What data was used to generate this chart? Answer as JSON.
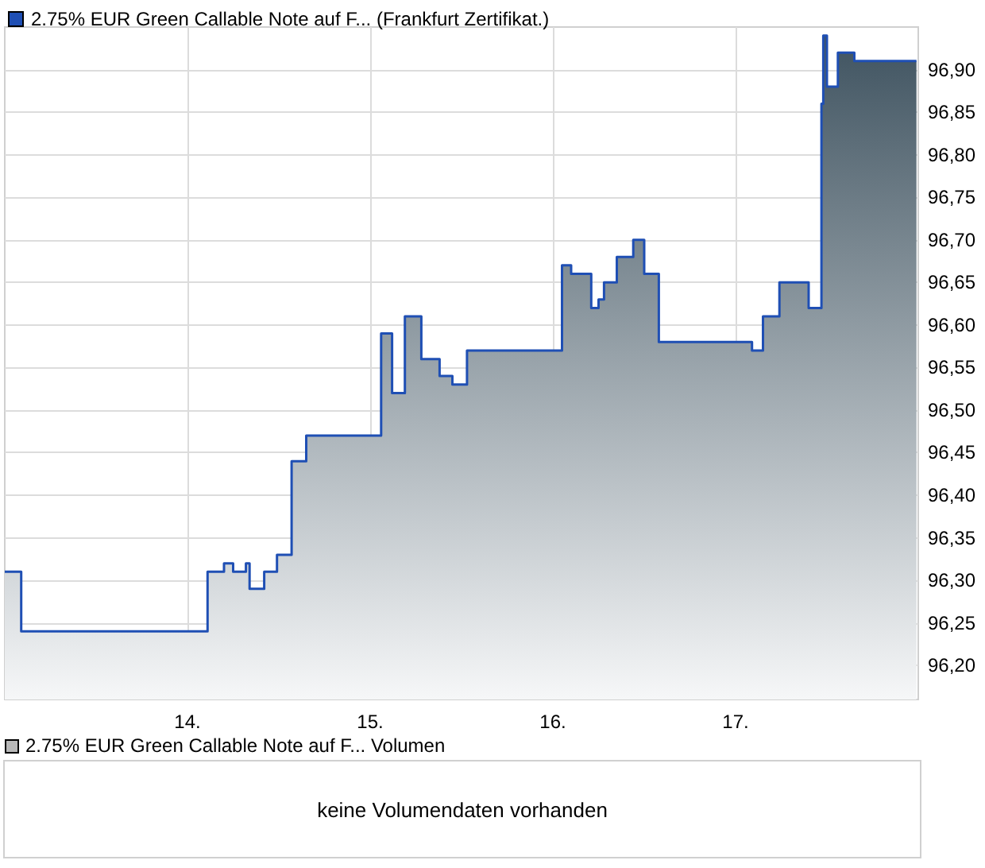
{
  "chart_data": [
    {
      "type": "area",
      "legend": "top left",
      "grid": true,
      "marker": "none",
      "xlim": [
        13,
        18
      ],
      "ylim": [
        96.16,
        96.95
      ],
      "xticks": [
        {
          "value": 14,
          "label": "14."
        },
        {
          "value": 15,
          "label": "15."
        },
        {
          "value": 16,
          "label": "16."
        },
        {
          "value": 17,
          "label": "17."
        }
      ],
      "yticks": [
        {
          "value": 96.2,
          "label": "96,20"
        },
        {
          "value": 96.25,
          "label": "96,25"
        },
        {
          "value": 96.3,
          "label": "96,30"
        },
        {
          "value": 96.35,
          "label": "96,35"
        },
        {
          "value": 96.4,
          "label": "96,40"
        },
        {
          "value": 96.45,
          "label": "96,45"
        },
        {
          "value": 96.5,
          "label": "96,50"
        },
        {
          "value": 96.55,
          "label": "96,55"
        },
        {
          "value": 96.6,
          "label": "96,60"
        },
        {
          "value": 96.65,
          "label": "96,65"
        },
        {
          "value": 96.7,
          "label": "96,70"
        },
        {
          "value": 96.75,
          "label": "96,75"
        },
        {
          "value": 96.8,
          "label": "96,80"
        },
        {
          "value": 96.85,
          "label": "96,85"
        },
        {
          "value": 96.9,
          "label": "96,90"
        }
      ],
      "series": [
        {
          "name": "2.75% EUR Green Callable Note auf F... (Frankfurt Zertifikat.)",
          "color": "#1f4fb4",
          "x": [
            13,
            13.09,
            13.09,
            14.11,
            14.11,
            14.2,
            14.2,
            14.25,
            14.25,
            14.32,
            14.32,
            14.34,
            14.34,
            14.42,
            14.42,
            14.49,
            14.49,
            14.57,
            14.57,
            14.65,
            14.65,
            15.06,
            15.06,
            15.12,
            15.12,
            15.19,
            15.19,
            15.28,
            15.28,
            15.38,
            15.38,
            15.45,
            15.45,
            15.53,
            15.53,
            16.05,
            16.05,
            16.1,
            16.1,
            16.21,
            16.21,
            16.25,
            16.25,
            16.28,
            16.28,
            16.35,
            16.35,
            16.44,
            16.44,
            16.5,
            16.5,
            16.58,
            16.58,
            17.09,
            17.09,
            17.15,
            17.15,
            17.24,
            17.24,
            17.4,
            17.4,
            17.47,
            17.47,
            17.48,
            17.48,
            17.5,
            17.5,
            17.56,
            17.56,
            17.65,
            17.65,
            17.99
          ],
          "values": [
            96.31,
            96.31,
            96.24,
            96.24,
            96.31,
            96.31,
            96.32,
            96.32,
            96.31,
            96.31,
            96.32,
            96.32,
            96.29,
            96.29,
            96.31,
            96.31,
            96.33,
            96.33,
            96.44,
            96.44,
            96.47,
            96.47,
            96.59,
            96.59,
            96.52,
            96.52,
            96.61,
            96.61,
            96.56,
            96.56,
            96.54,
            96.54,
            96.53,
            96.53,
            96.57,
            96.57,
            96.67,
            96.67,
            96.66,
            96.66,
            96.62,
            96.62,
            96.63,
            96.63,
            96.65,
            96.65,
            96.68,
            96.68,
            96.7,
            96.7,
            96.66,
            96.66,
            96.58,
            96.58,
            96.57,
            96.57,
            96.61,
            96.61,
            96.65,
            96.65,
            96.62,
            96.62,
            96.86,
            96.86,
            96.94,
            96.94,
            96.88,
            96.88,
            96.92,
            96.92,
            96.91,
            96.91
          ]
        }
      ]
    },
    {
      "type": "other",
      "title": "2.75% EUR Green Callable Note auf F... Volumen",
      "annotations": [
        "keine Volumendaten vorhanden"
      ]
    }
  ]
}
